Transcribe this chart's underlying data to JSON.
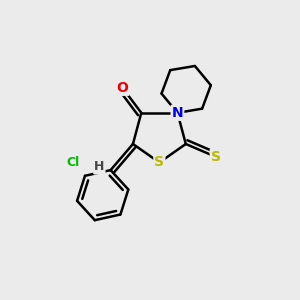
{
  "background_color": "#ebebeb",
  "atom_colors": {
    "C": "#000000",
    "N": "#0000ee",
    "O": "#ee0000",
    "S": "#bbbb00",
    "Cl": "#00bb00",
    "H": "#444444"
  },
  "bond_color": "#000000",
  "bond_width": 1.8,
  "figsize": [
    3.0,
    3.0
  ],
  "dpi": 100
}
